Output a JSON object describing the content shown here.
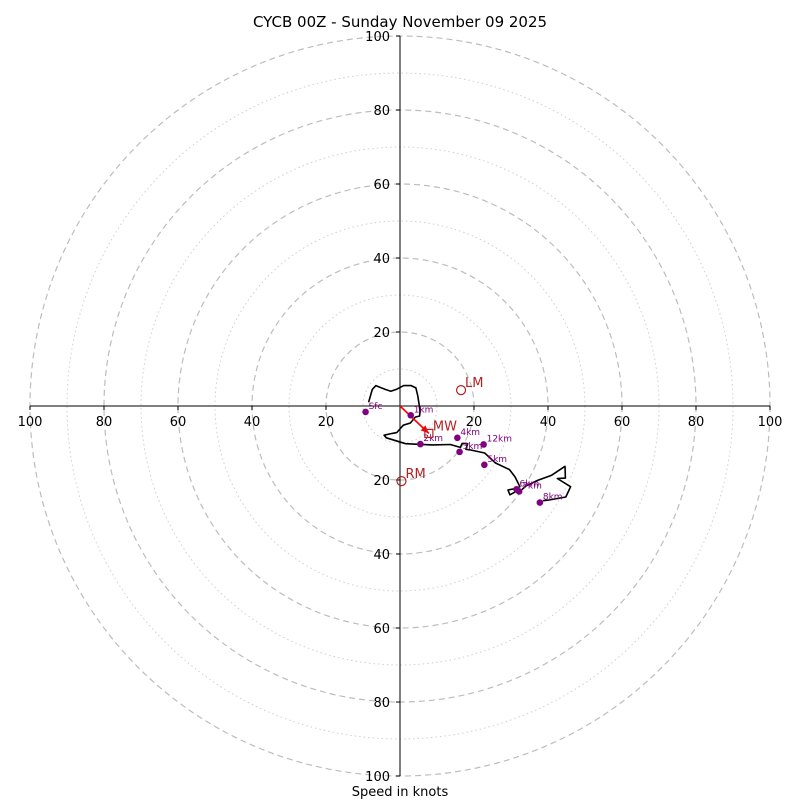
{
  "chart_data": {
    "type": "hodograph",
    "title": "CYCB 00Z - Sunday November 09 2025",
    "xlabel": "Speed in knots",
    "units": "knots",
    "range": [
      -100,
      100
    ],
    "major_rings": [
      20,
      40,
      60,
      80,
      100
    ],
    "minor_rings": [
      10,
      30,
      50,
      70,
      90
    ],
    "x_tick_labels": [
      "100",
      "80",
      "60",
      "40",
      "20",
      "20",
      "40",
      "60",
      "80",
      "100"
    ],
    "x_tick_values": [
      -100,
      -80,
      -60,
      -40,
      -20,
      20,
      40,
      60,
      80,
      100
    ],
    "y_tick_labels": [
      "100",
      "80",
      "60",
      "40",
      "20",
      "20",
      "40",
      "60",
      "80",
      "100"
    ],
    "y_tick_values": [
      100,
      80,
      60,
      40,
      20,
      -20,
      -40,
      -60,
      -80,
      -100
    ],
    "profile": [
      [
        -8.5,
        1.0
      ],
      [
        -7.5,
        4.5
      ],
      [
        -6.5,
        5.5
      ],
      [
        -4,
        4.5
      ],
      [
        -2.5,
        4
      ],
      [
        -1,
        4.5
      ],
      [
        1,
        5.5
      ],
      [
        3,
        5.5
      ],
      [
        4.3,
        4.9
      ],
      [
        4.8,
        2.7
      ],
      [
        5.2,
        0.3
      ],
      [
        5.4,
        -1.5
      ],
      [
        5.3,
        -2.7
      ],
      [
        4.1,
        -3
      ],
      [
        2.8,
        -4.6
      ],
      [
        0.9,
        -5.2
      ],
      [
        -0.9,
        -7.2
      ],
      [
        -2.1,
        -7.4
      ],
      [
        -4.3,
        -7.9
      ],
      [
        -3.7,
        -8.6
      ],
      [
        1.5,
        -10.2
      ],
      [
        8.7,
        -10.5
      ],
      [
        13.6,
        -10.4
      ],
      [
        16.3,
        -11.2
      ],
      [
        16.8,
        -10.1
      ],
      [
        18.3,
        -10.2
      ],
      [
        17.8,
        -11.7
      ],
      [
        19.1,
        -11.9
      ],
      [
        22.9,
        -12.7
      ],
      [
        25.8,
        -15.4
      ],
      [
        29.6,
        -17.2
      ],
      [
        31.1,
        -19.2
      ],
      [
        32.4,
        -21.8
      ],
      [
        31.3,
        -22.3
      ],
      [
        29.2,
        -22.7
      ],
      [
        29.7,
        -24
      ],
      [
        31.2,
        -23.2
      ],
      [
        32.6,
        -22.9
      ],
      [
        34.1,
        -21.6
      ],
      [
        37.2,
        -20.1
      ],
      [
        41,
        -18.7
      ],
      [
        44.6,
        -16.3
      ],
      [
        44.7,
        -19.5
      ],
      [
        42.5,
        -19.6
      ],
      [
        46.1,
        -21.8
      ],
      [
        44.8,
        -24.6
      ],
      [
        40.3,
        -25.4
      ],
      [
        38.6,
        -25.6
      ]
    ],
    "height_markers": [
      {
        "label": "Sfc",
        "u": -9.3,
        "v": -1.6
      },
      {
        "label": "1km",
        "u": 2.9,
        "v": -2.5
      },
      {
        "label": "2km",
        "u": 5.5,
        "v": -10.3
      },
      {
        "label": "3km",
        "u": 16.1,
        "v": -12.4
      },
      {
        "label": "4km",
        "u": 15.5,
        "v": -8.6
      },
      {
        "label": "5km",
        "u": 22.8,
        "v": -15.9
      },
      {
        "label": "6km",
        "u": 31.5,
        "v": -22.5
      },
      {
        "label": "7km",
        "u": 32.2,
        "v": -23.1
      },
      {
        "label": "8km",
        "u": 37.8,
        "v": -26.1
      },
      {
        "label": "12km",
        "u": 22.6,
        "v": -10.4
      }
    ],
    "storm_motion": [
      {
        "label": "LM",
        "u": 16.5,
        "v": 4.3
      },
      {
        "label": "MW",
        "u": 7.8,
        "v": -7.4
      },
      {
        "label": "RM",
        "u": 0.4,
        "v": -20.3
      }
    ],
    "mean_wind_vector": {
      "from_u": 0,
      "from_v": 0,
      "to_u": 7.8,
      "to_v": -7.4
    },
    "colors": {
      "profile": "#000000",
      "marker": "#800080",
      "storm_motion": "#b22222",
      "vector": "#ff0000",
      "major_grid": "#bdbdbd",
      "minor_grid": "#cfcfcf"
    }
  }
}
